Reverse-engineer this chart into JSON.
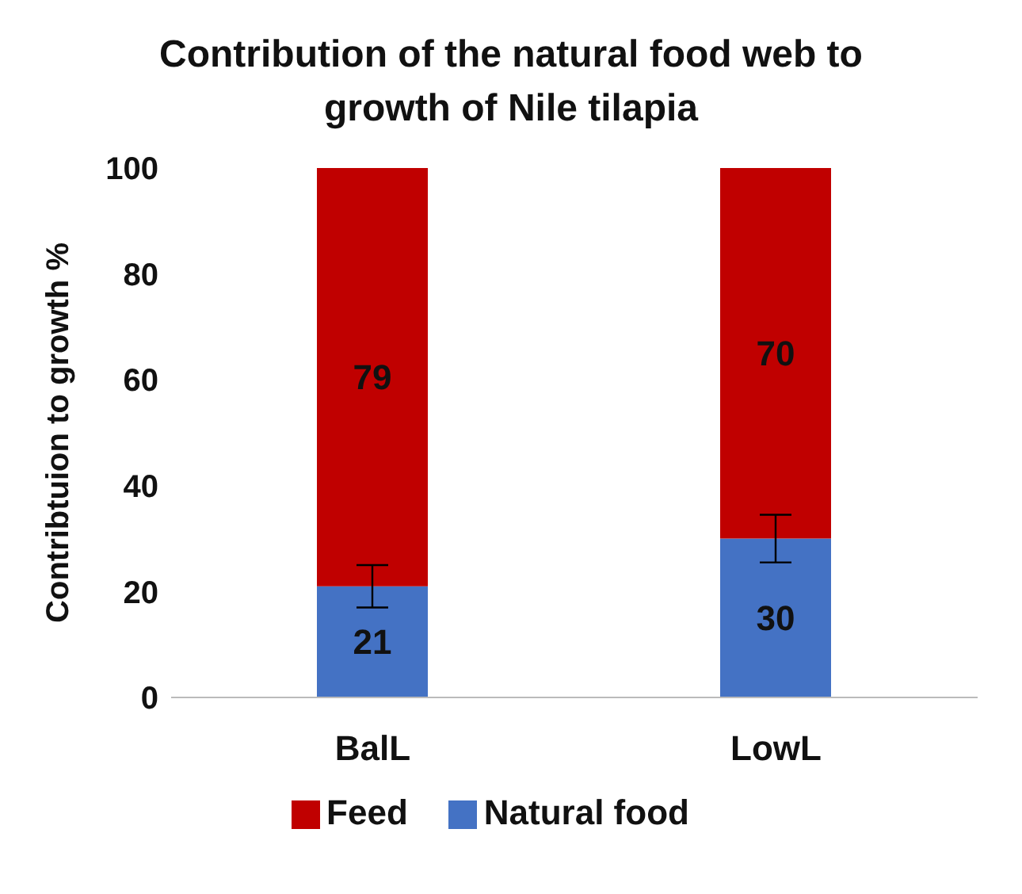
{
  "chart_data": {
    "type": "bar",
    "title": "Contribution of the natural food web to growth of Nile tilapia",
    "ylabel": "Contribtuion to growth %",
    "categories": [
      "BalL",
      "LowL"
    ],
    "stacked": true,
    "series": [
      {
        "name": "Natural food",
        "color": "#4472c4",
        "values": [
          21,
          30
        ],
        "errors": [
          4,
          4.5
        ]
      },
      {
        "name": "Feed",
        "color": "#c00000",
        "values": [
          79,
          70
        ]
      }
    ],
    "ylim": [
      0,
      100
    ],
    "yticks": [
      0,
      20,
      40,
      60,
      80,
      100
    ],
    "data_labels": true,
    "grid": false,
    "legend": "bottom"
  }
}
